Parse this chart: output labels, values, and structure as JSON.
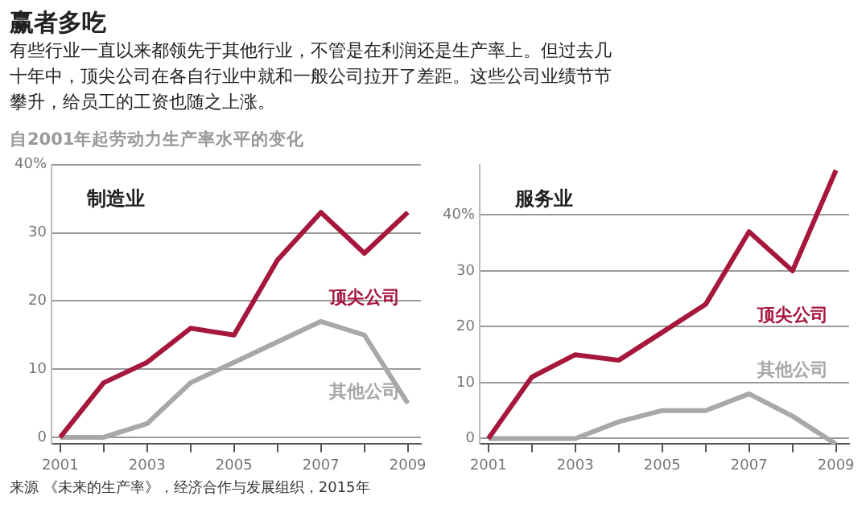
{
  "chart_data": [
    {
      "type": "line",
      "title": "制造业",
      "annotations": [
        "赢者多吃",
        "有些行业一直以来都领先于其他行业，不管是在利润还是生产率上。但过去几十年中，顶尖公司在各自行业中就和一般公司拉开了差距。这些公司业绩节节攀升，给员工的工资也随之上涨。",
        "自2001年起劳动力生产率水平的变化",
        "来源 《未来的生产率》，经济合作与发展组织，2015年"
      ],
      "x": [
        2001,
        2002,
        2003,
        2004,
        2005,
        2006,
        2007,
        2008,
        2009
      ],
      "series": [
        {
          "name": "顶尖公司",
          "color": "#a6173c",
          "values": [
            0,
            8,
            11,
            16,
            15,
            26,
            33,
            27,
            33
          ]
        },
        {
          "name": "其他公司",
          "color": "#a8a8a8",
          "values": [
            0,
            0,
            2,
            8,
            11,
            14,
            17,
            15,
            5
          ]
        }
      ],
      "xlim": [
        2000.8,
        2009.3
      ],
      "xticks": [
        2001,
        {
          "value": 2002,
          "label": null
        },
        2003,
        {
          "value": 2004,
          "label": null
        },
        2005,
        {
          "value": 2006,
          "label": null
        },
        2007,
        {
          "value": 2008,
          "label": null
        },
        2009
      ],
      "ylim": [
        -1,
        40
      ],
      "yticks": [
        0,
        10,
        20,
        30,
        {
          "value": 40,
          "label": "40%"
        }
      ],
      "grid": "y"
    },
    {
      "type": "line",
      "title": "服务业",
      "x": [
        2001,
        2002,
        2003,
        2004,
        2005,
        2006,
        2007,
        2008,
        2009
      ],
      "series": [
        {
          "name": "顶尖公司",
          "color": "#a6173c",
          "values": [
            0,
            11,
            15,
            14,
            19,
            24,
            37,
            30,
            48
          ]
        },
        {
          "name": "其他公司",
          "color": "#a8a8a8",
          "values": [
            0,
            0,
            0,
            3,
            5,
            5,
            8,
            4,
            -1
          ]
        }
      ],
      "xlim": [
        2000.8,
        2009.3
      ],
      "xticks": [
        2001,
        {
          "value": 2002,
          "label": null
        },
        2003,
        {
          "value": 2004,
          "label": null
        },
        2005,
        {
          "value": 2006,
          "label": null
        },
        2007,
        {
          "value": 2008,
          "label": null
        },
        2009
      ],
      "ylim": [
        -1,
        49
      ],
      "yticks": [
        0,
        10,
        20,
        30,
        {
          "value": 40,
          "label": "40%"
        }
      ],
      "grid": "y"
    }
  ]
}
